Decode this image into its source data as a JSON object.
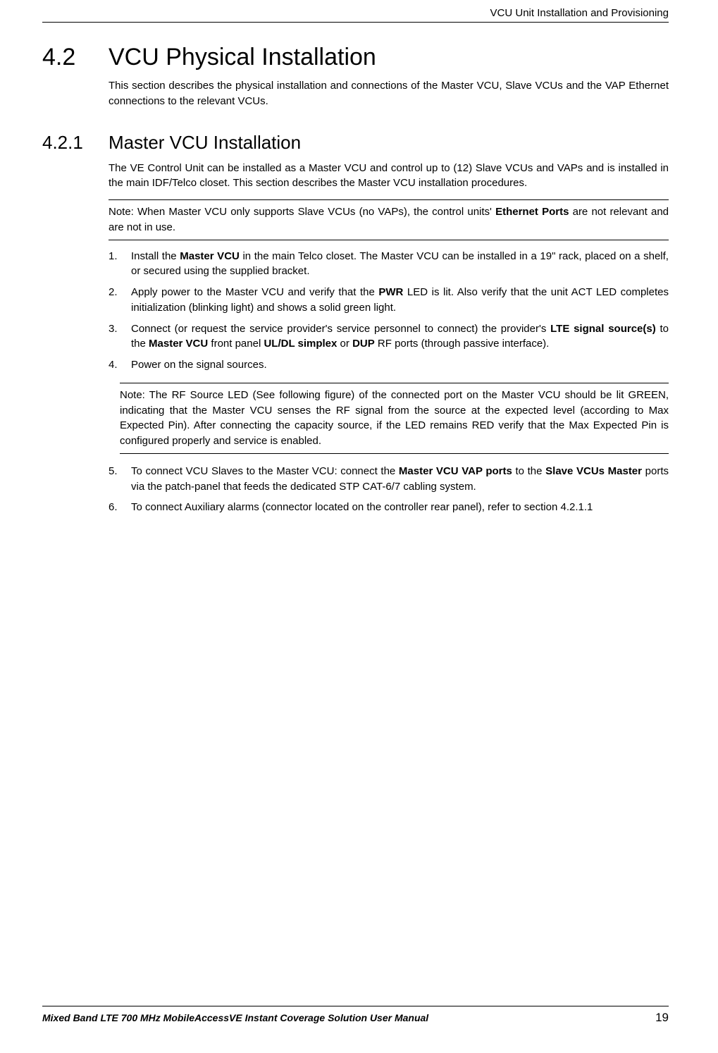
{
  "header": {
    "text": "VCU Unit Installation and Provisioning"
  },
  "section42": {
    "number": "4.2",
    "title": "VCU Physical Installation",
    "intro": "This section describes the physical installation and connections of the Master VCU, Slave VCUs and the VAP Ethernet connections to the relevant VCUs."
  },
  "section421": {
    "number": "4.2.1",
    "title": "Master VCU Installation",
    "intro": "The VE Control Unit can be installed as a Master VCU and control up to (12) Slave VCUs and VAPs and is installed in the main IDF/Telco closet. This section describes the Master VCU installation procedures.",
    "note1_pre": "Note: When Master VCU only supports Slave VCUs (no VAPs), the control units' ",
    "note1_bold": "Ethernet Ports",
    "note1_post": " are not relevant and are not in use.",
    "li1_pre": "Install the ",
    "li1_b1": "Master VCU",
    "li1_post": " in the main Telco closet. The Master VCU can be installed in a 19\" rack, placed on a shelf, or secured using the supplied bracket.",
    "li2_pre": "Apply power to the Master VCU and verify that the ",
    "li2_b1": "PWR",
    "li2_post": " LED is lit. Also verify that the unit ACT LED completes initialization (blinking light) and shows a solid green light.",
    "li3_pre": "Connect (or request the service provider's service personnel to connect) the provider's ",
    "li3_b1": "LTE signal source(s)",
    "li3_mid1": " to the ",
    "li3_b2": "Master VCU",
    "li3_mid2": " front panel ",
    "li3_b3": "UL/DL simplex",
    "li3_mid3": " or ",
    "li3_b4": "DUP",
    "li3_post": " RF ports (through passive interface).",
    "li4": "Power on the signal sources.",
    "inner_note": "Note: The RF Source LED (See following figure) of the connected port on the Master VCU should be lit GREEN, indicating that the Master VCU senses the RF signal from the source at the expected level (according to Max Expected Pin). After connecting the capacity source, if the LED remains RED verify that the Max Expected Pin is configured properly and service is enabled.",
    "li5_pre": "To connect VCU Slaves to the Master VCU: connect the ",
    "li5_b1": "Master VCU VAP ports",
    "li5_mid": " to the ",
    "li5_b2": "Slave VCUs Master",
    "li5_post": " ports via the patch-panel that feeds the dedicated STP CAT-6/7 cabling system.",
    "li6": "To connect Auxiliary alarms (connector located on the controller rear panel), refer to section 4.2.1.1"
  },
  "footer": {
    "title": "Mixed Band LTE 700 MHz MobileAccessVE Instant Coverage Solution User Manual",
    "page": "19"
  },
  "colors": {
    "text": "#000000",
    "background": "#ffffff",
    "rule": "#000000"
  }
}
